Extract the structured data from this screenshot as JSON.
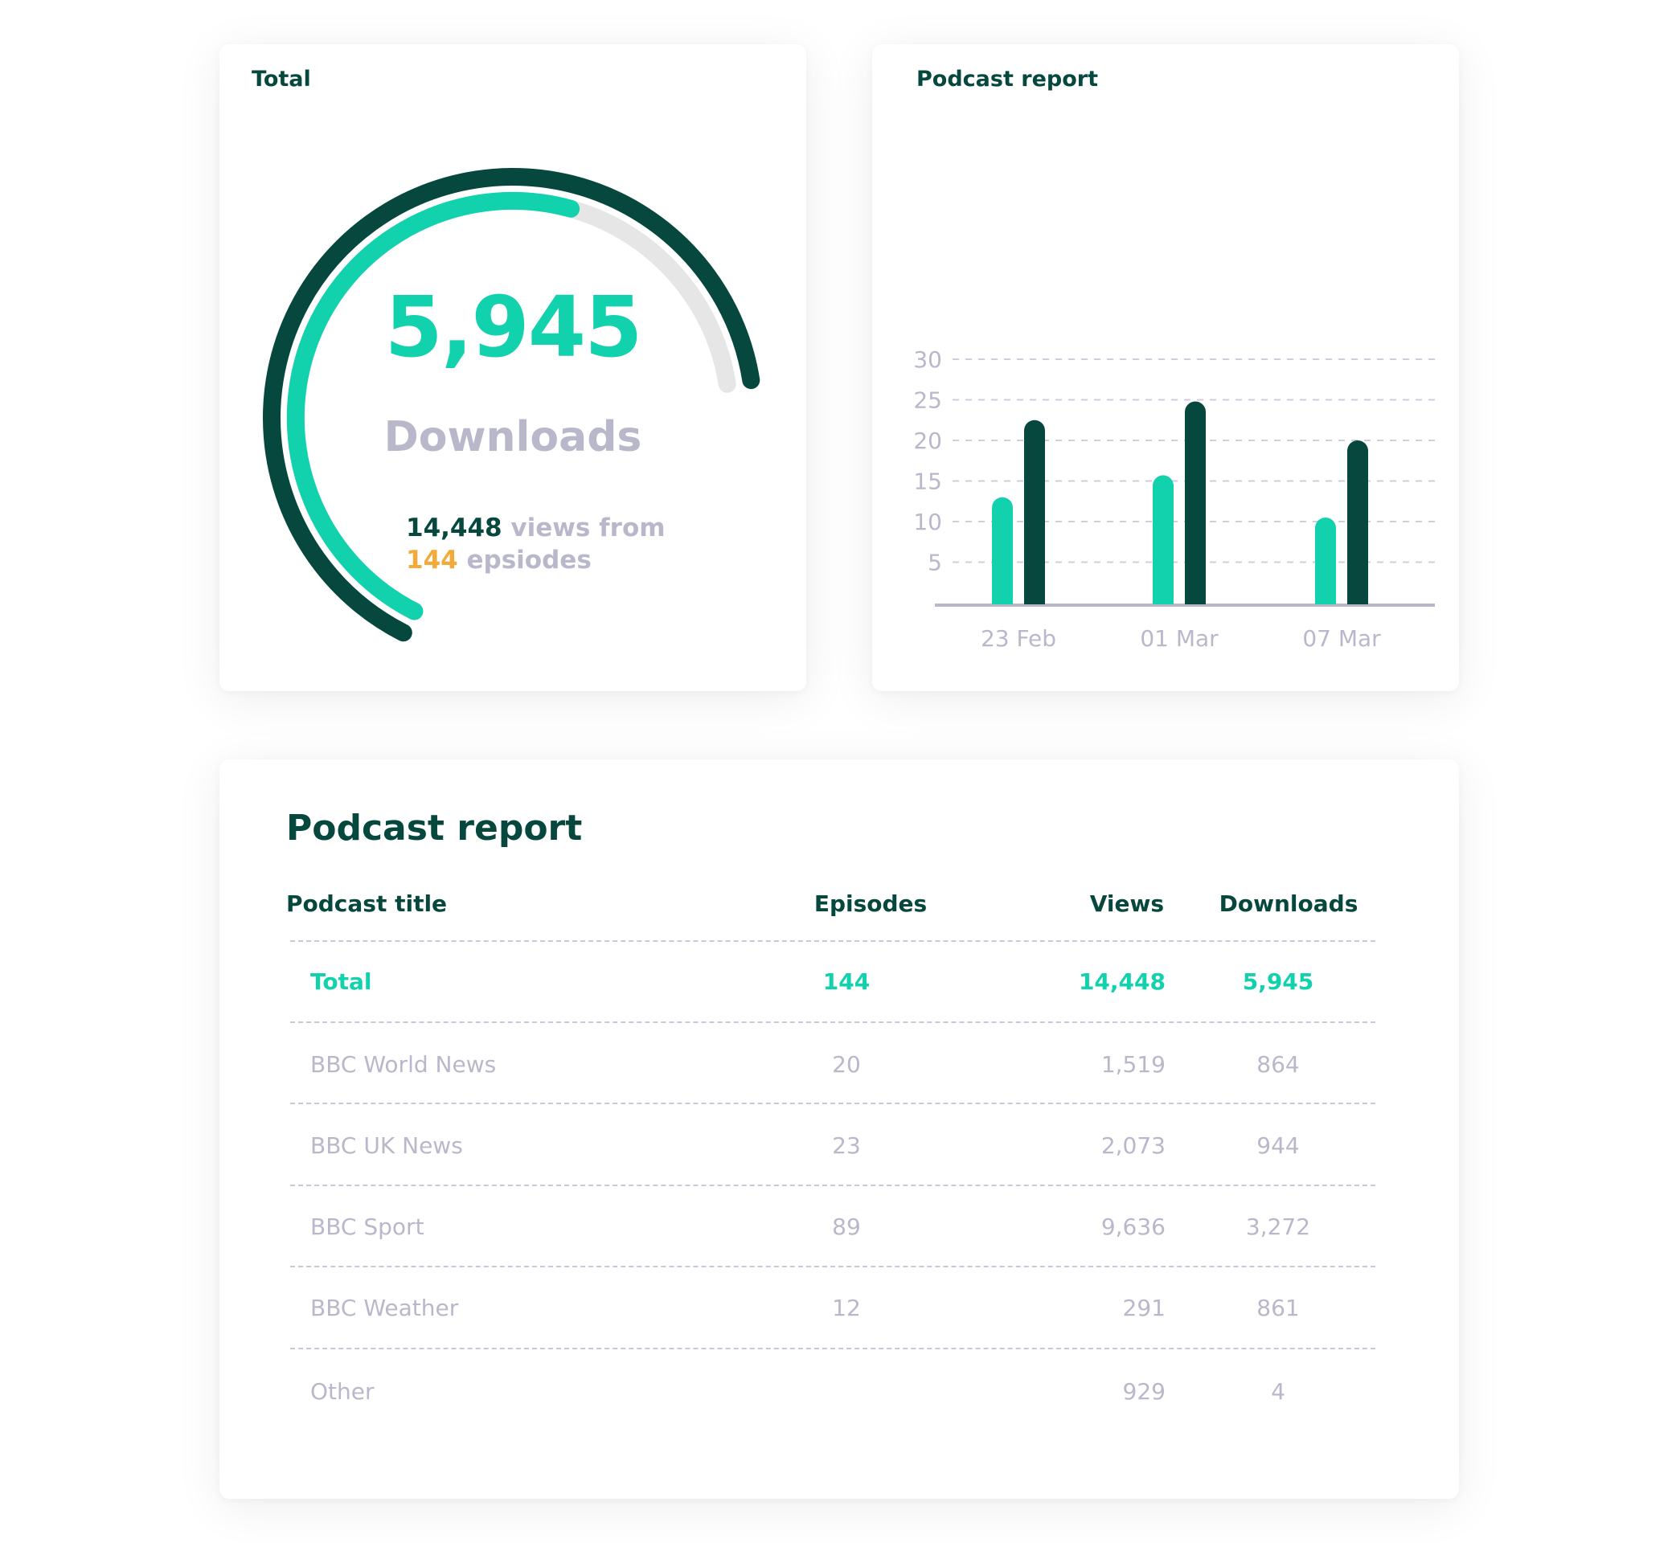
{
  "total_card": {
    "title": "Total",
    "value": "5,945",
    "label": "Downloads",
    "views_value": "14,448",
    "views_text": " views from",
    "episodes_value": "144",
    "episodes_text": " epsiodes",
    "progress_fraction": 0.72,
    "colors": {
      "outer": "#06483d",
      "progress": "#12d2ae",
      "track": "#e6e6e6"
    }
  },
  "chart_card": {
    "title": "Podcast report"
  },
  "chart_data": {
    "type": "bar",
    "categories": [
      "23 Feb",
      "01 Mar",
      "07 Mar"
    ],
    "series": [
      {
        "values": [
          13,
          15.7,
          10.5
        ],
        "color": "#12d2ae"
      },
      {
        "values": [
          22.5,
          24.8,
          20
        ],
        "color": "#06483d"
      }
    ],
    "yticks": [
      5,
      10,
      15,
      20,
      25,
      30
    ],
    "ylim": [
      0,
      30
    ],
    "grid": true,
    "grid_style": "dashed"
  },
  "table_card": {
    "title": "Podcast report",
    "columns": [
      "Podcast title",
      "Episodes",
      "Views",
      "Downloads"
    ],
    "total": {
      "title": "Total",
      "episodes": "144",
      "views": "14,448",
      "downloads": "5,945"
    },
    "rows": [
      {
        "title": "BBC World News",
        "episodes": "20",
        "views": "1,519",
        "downloads": "864"
      },
      {
        "title": "BBC UK News",
        "episodes": "23",
        "views": "2,073",
        "downloads": "944"
      },
      {
        "title": "BBC Sport",
        "episodes": "89",
        "views": "9,636",
        "downloads": "3,272"
      },
      {
        "title": "BBC Weather",
        "episodes": "12",
        "views": "291",
        "downloads": "861"
      },
      {
        "title": "Other",
        "episodes": "",
        "views": "929",
        "downloads": "4"
      }
    ]
  }
}
